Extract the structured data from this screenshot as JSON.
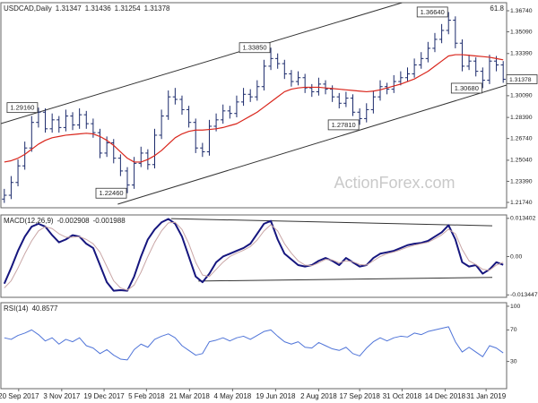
{
  "chart_data": [
    {
      "type": "ohlc",
      "title": "USDCAD,Daily",
      "title_values": [
        1.31347,
        1.31436,
        1.31254,
        1.31378
      ],
      "level_note": "61.8",
      "watermark": "ActionForex.com",
      "color": "#1b2a6b",
      "xlim": [
        -0.5,
        73.5
      ],
      "ylim": [
        1.2132,
        1.3737
      ],
      "yticks": [
        {
          "value": 1.3674,
          "label": "1.36740"
        },
        {
          "value": 1.3509,
          "label": "1.35090"
        },
        {
          "value": 1.3339,
          "label": "1.33390"
        },
        {
          "value": 1.3009,
          "label": "1.30090"
        },
        {
          "value": 1.2839,
          "label": "1.28390"
        },
        {
          "value": 1.2674,
          "label": "1.26740"
        },
        {
          "value": 1.2504,
          "label": "1.25040"
        },
        {
          "value": 1.2339,
          "label": "1.23390"
        },
        {
          "value": 1.2174,
          "label": "1.21740"
        }
      ],
      "open": [
        1.22,
        1.223,
        1.233,
        1.246,
        1.26,
        1.28,
        1.288,
        1.275,
        1.282,
        1.276,
        1.285,
        1.278,
        1.286,
        1.279,
        1.272,
        1.256,
        1.264,
        1.252,
        1.242,
        1.231,
        1.248,
        1.256,
        1.247,
        1.27,
        1.285,
        1.3,
        1.298,
        1.29,
        1.28,
        1.26,
        1.257,
        1.277,
        1.282,
        1.289,
        1.287,
        1.296,
        1.302,
        1.3,
        1.308,
        1.324,
        1.33,
        1.326,
        1.318,
        1.312,
        1.315,
        1.307,
        1.304,
        1.31,
        1.306,
        1.3,
        1.295,
        1.299,
        1.288,
        1.283,
        1.29,
        1.3,
        1.308,
        1.306,
        1.312,
        1.315,
        1.318,
        1.325,
        1.33,
        1.338,
        1.345,
        1.352,
        1.36,
        1.342,
        1.324,
        1.328,
        1.32,
        1.313,
        1.328,
        1.325
      ],
      "high": [
        1.228,
        1.238,
        1.251,
        1.265,
        1.285,
        1.2916,
        1.291,
        1.287,
        1.285,
        1.29,
        1.288,
        1.291,
        1.289,
        1.283,
        1.275,
        1.269,
        1.267,
        1.255,
        1.245,
        1.253,
        1.261,
        1.259,
        1.275,
        1.29,
        1.305,
        1.307,
        1.301,
        1.293,
        1.283,
        1.264,
        1.282,
        1.287,
        1.294,
        1.293,
        1.301,
        1.307,
        1.306,
        1.313,
        1.329,
        1.3385,
        1.334,
        1.329,
        1.321,
        1.32,
        1.318,
        1.31,
        1.315,
        1.313,
        1.309,
        1.303,
        1.304,
        1.302,
        1.291,
        1.295,
        1.305,
        1.313,
        1.311,
        1.317,
        1.32,
        1.323,
        1.33,
        1.335,
        1.343,
        1.35,
        1.357,
        1.3664,
        1.363,
        1.345,
        1.333,
        1.331,
        1.323,
        1.333,
        1.332,
        1.328
      ],
      "low": [
        1.217,
        1.22,
        1.23,
        1.243,
        1.257,
        1.276,
        1.272,
        1.272,
        1.272,
        1.273,
        1.274,
        1.275,
        1.275,
        1.268,
        1.252,
        1.253,
        1.248,
        1.238,
        1.2246,
        1.228,
        1.245,
        1.243,
        1.244,
        1.267,
        1.282,
        1.294,
        1.286,
        1.276,
        1.256,
        1.253,
        1.254,
        1.273,
        1.279,
        1.283,
        1.284,
        1.293,
        1.296,
        1.297,
        1.305,
        1.321,
        1.322,
        1.314,
        1.308,
        1.309,
        1.303,
        1.3,
        1.301,
        1.302,
        1.296,
        1.291,
        1.292,
        1.285,
        1.2781,
        1.28,
        1.287,
        1.297,
        1.302,
        1.303,
        1.309,
        1.312,
        1.315,
        1.322,
        1.327,
        1.335,
        1.342,
        1.349,
        1.338,
        1.32,
        1.321,
        1.316,
        1.3068,
        1.31,
        1.32,
        1.311
      ],
      "close": [
        1.223,
        1.233,
        1.246,
        1.26,
        1.28,
        1.288,
        1.275,
        1.282,
        1.276,
        1.285,
        1.278,
        1.286,
        1.279,
        1.272,
        1.256,
        1.264,
        1.252,
        1.242,
        1.231,
        1.248,
        1.256,
        1.247,
        1.27,
        1.285,
        1.3,
        1.298,
        1.29,
        1.28,
        1.26,
        1.257,
        1.277,
        1.282,
        1.289,
        1.287,
        1.296,
        1.302,
        1.3,
        1.308,
        1.324,
        1.33,
        1.326,
        1.318,
        1.312,
        1.315,
        1.307,
        1.304,
        1.31,
        1.306,
        1.3,
        1.295,
        1.299,
        1.288,
        1.283,
        1.29,
        1.3,
        1.308,
        1.306,
        1.312,
        1.315,
        1.318,
        1.325,
        1.33,
        1.338,
        1.345,
        1.352,
        1.36,
        1.342,
        1.324,
        1.328,
        1.32,
        1.313,
        1.328,
        1.325,
        1.31378
      ],
      "overlays": [
        {
          "color": "#d9261c",
          "values": [
            1.249,
            1.25,
            1.252,
            1.255,
            1.259,
            1.263,
            1.266,
            1.268,
            1.269,
            1.27,
            1.2705,
            1.271,
            1.2715,
            1.271,
            1.269,
            1.266,
            1.262,
            1.257,
            1.252,
            1.249,
            1.249,
            1.251,
            1.254,
            1.258,
            1.263,
            1.268,
            1.271,
            1.273,
            1.274,
            1.274,
            1.2745,
            1.275,
            1.276,
            1.2775,
            1.279,
            1.282,
            1.285,
            1.288,
            1.292,
            1.296,
            1.3,
            1.304,
            1.306,
            1.307,
            1.3075,
            1.3075,
            1.3075,
            1.307,
            1.3065,
            1.306,
            1.3055,
            1.305,
            1.3045,
            1.304,
            1.3045,
            1.3055,
            1.307,
            1.3085,
            1.31,
            1.312,
            1.314,
            1.317,
            1.32,
            1.324,
            1.328,
            1.332,
            1.333,
            1.333,
            1.3325,
            1.332,
            1.3315,
            1.331,
            1.33,
            1.329
          ]
        }
      ],
      "trendlines": [
        {
          "x": [
            -0.5,
            58.2
          ],
          "y": [
            1.2791,
            1.3737
          ]
        },
        {
          "x": [
            16.6,
            73.5
          ],
          "y": [
            1.216,
            1.3092
          ]
        }
      ],
      "annotations": [
        {
          "value": 1.2916,
          "label": "1.29160"
        },
        {
          "value": 1.2246,
          "label": "1.22460"
        },
        {
          "value": 1.3385,
          "label": "1.33850"
        },
        {
          "value": 1.2781,
          "label": "1.27810"
        },
        {
          "value": 1.3664,
          "label": "1.36640"
        },
        {
          "value": 1.3068,
          "label": "1.30680"
        }
      ]
    },
    {
      "type": "line",
      "title": "MACD(12,26,9)",
      "title_values": [
        -0.002908,
        -0.001988
      ],
      "xlim": [
        -0.5,
        73.5
      ],
      "ylim": [
        -0.0143,
        0.0146
      ],
      "yticks": [
        0.013402,
        {
          "value": 0,
          "label": "0.00"
        },
        -0.013447
      ],
      "series": [
        {
          "color": "#16167e",
          "width": 2,
          "values": [
            -0.0095,
            -0.004,
            0.002,
            0.007,
            0.0105,
            0.0115,
            0.0105,
            0.0075,
            0.005,
            0.006,
            0.0075,
            0.007,
            0.0045,
            0.003,
            -0.003,
            -0.009,
            -0.012,
            -0.0118,
            -0.012,
            -0.007,
            0,
            0.006,
            0.0095,
            0.012,
            0.0132,
            0.0115,
            0.007,
            0,
            -0.007,
            -0.009,
            -0.006,
            -0.002,
            0,
            0.001,
            0.002,
            0.003,
            0.0045,
            0.008,
            0.0115,
            0.0125,
            0.006,
            0.001,
            -0.001,
            -0.003,
            -0.0035,
            -0.003,
            -0.0015,
            -0.0005,
            -0.0015,
            -0.003,
            -0.0005,
            -0.002,
            -0.0035,
            -0.003,
            -0.0005,
            0.001,
            0.0015,
            0.002,
            0.003,
            0.004,
            0.0045,
            0.0048,
            0.0055,
            0.007,
            0.0085,
            0.011,
            0.006,
            -0.002,
            -0.0035,
            -0.003,
            -0.006,
            -0.0045,
            -0.002,
            -0.002908
          ]
        },
        {
          "color": "#c9a6a6",
          "width": 1,
          "values": [
            -0.011,
            -0.0085,
            -0.004,
            0.001,
            0.0055,
            0.009,
            0.0105,
            0.0098,
            0.008,
            0.0068,
            0.0068,
            0.007,
            0.006,
            0.0045,
            0.0015,
            -0.0035,
            -0.0085,
            -0.011,
            -0.0118,
            -0.01,
            -0.0055,
            0,
            0.005,
            0.009,
            0.0118,
            0.012,
            0.0095,
            0.0045,
            -0.002,
            -0.0065,
            -0.007,
            -0.0045,
            -0.002,
            0,
            0.0012,
            0.0022,
            0.0035,
            0.0058,
            0.009,
            0.0112,
            0.009,
            0.0045,
            0.0012,
            -0.0015,
            -0.003,
            -0.0032,
            -0.0022,
            -0.001,
            -0.0012,
            -0.0022,
            -0.0015,
            -0.0018,
            -0.0028,
            -0.003,
            -0.0015,
            0,
            0.001,
            0.0016,
            0.0024,
            0.0033,
            0.004,
            0.0045,
            0.005,
            0.0062,
            0.0076,
            0.0096,
            0.008,
            0.0025,
            -0.0015,
            -0.0028,
            -0.0045,
            -0.0048,
            -0.003,
            -0.001988
          ]
        }
      ],
      "trendlines": [
        {
          "x": [
            24.4,
            71.4
          ],
          "y": [
            0.0133,
            0.0108
          ]
        },
        {
          "x": [
            28.4,
            71.4
          ],
          "y": [
            -0.0086,
            -0.0073
          ]
        }
      ]
    },
    {
      "type": "line",
      "title": "RSI(14)",
      "title_values": [
        40.8577
      ],
      "xlim": [
        -0.5,
        73.5
      ],
      "ylim": [
        -4.5,
        104.5
      ],
      "yticks": [
        100,
        70,
        30
      ],
      "series": [
        {
          "color": "#4f74d8",
          "width": 1,
          "values": [
            60,
            58,
            63,
            66,
            70,
            64,
            56,
            60,
            52,
            58,
            55,
            60,
            50,
            47,
            40,
            45,
            38,
            33,
            32,
            45,
            52,
            48,
            58,
            62,
            65,
            60,
            50,
            44,
            38,
            40,
            55,
            57,
            60,
            56,
            60,
            62,
            58,
            63,
            68,
            70,
            62,
            55,
            52,
            55,
            48,
            47,
            54,
            50,
            46,
            44,
            48,
            40,
            37,
            47,
            55,
            60,
            56,
            60,
            62,
            61,
            66,
            64,
            68,
            70,
            72,
            74,
            55,
            42,
            48,
            42,
            36,
            50,
            47,
            40.8577
          ]
        }
      ],
      "xticks": [
        {
          "value": 2.1,
          "label": "20 Sep 2017"
        },
        {
          "value": 8.4,
          "label": "3 Nov 2017"
        },
        {
          "value": 14.6,
          "label": "19 Dec 2017"
        },
        {
          "value": 20.8,
          "label": "5 Feb 2018"
        },
        {
          "value": 27.1,
          "label": "21 Mar 2018"
        },
        {
          "value": 33.4,
          "label": "4 May 2018"
        },
        {
          "value": 39.7,
          "label": "19 Jun 2018"
        },
        {
          "value": 46.0,
          "label": "2 Aug 2018"
        },
        {
          "value": 52.0,
          "label": "17 Sep 2018"
        },
        {
          "value": 58.2,
          "label": "31 Oct 2018"
        },
        {
          "value": 64.5,
          "label": "14 Dec 2018"
        },
        {
          "value": 70.5,
          "label": "31 Jan 2019"
        }
      ]
    }
  ]
}
